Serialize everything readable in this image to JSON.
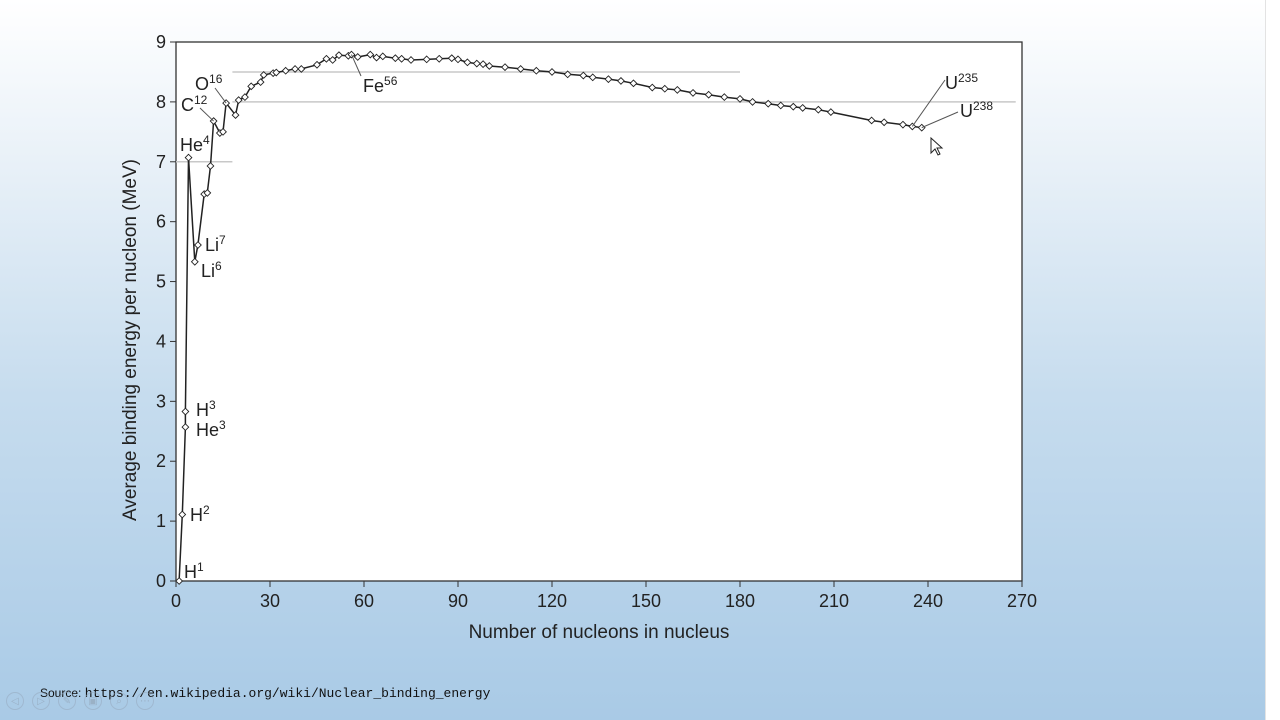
{
  "chart_data": {
    "type": "line",
    "title": "",
    "xlabel": "Number of nucleons in nucleus",
    "ylabel": "Average binding energy per nucleon (MeV)",
    "xlim": [
      0,
      270
    ],
    "ylim": [
      0,
      9
    ],
    "xticks": [
      "0",
      "30",
      "60",
      "90",
      "120",
      "150",
      "180",
      "210",
      "240",
      "270"
    ],
    "yticks": [
      "0",
      "1",
      "2",
      "3",
      "4",
      "5",
      "6",
      "7",
      "8",
      "9"
    ],
    "grid": false,
    "legend": "none",
    "points": [
      [
        1,
        0
      ],
      [
        2,
        1.11
      ],
      [
        3,
        2.57
      ],
      [
        3,
        2.83
      ],
      [
        4,
        7.07
      ],
      [
        6,
        5.33
      ],
      [
        7,
        5.61
      ],
      [
        9,
        6.46
      ],
      [
        10,
        6.48
      ],
      [
        11,
        6.93
      ],
      [
        12,
        7.68
      ],
      [
        14,
        7.48
      ],
      [
        15,
        7.5
      ],
      [
        16,
        7.98
      ],
      [
        19,
        7.78
      ],
      [
        20,
        8.03
      ],
      [
        22,
        8.08
      ],
      [
        24,
        8.26
      ],
      [
        27,
        8.33
      ],
      [
        28,
        8.45
      ],
      [
        31,
        8.48
      ],
      [
        32,
        8.49
      ],
      [
        35,
        8.52
      ],
      [
        38,
        8.55
      ],
      [
        40,
        8.55
      ],
      [
        45,
        8.62
      ],
      [
        48,
        8.72
      ],
      [
        50,
        8.7
      ],
      [
        52,
        8.78
      ],
      [
        55,
        8.77
      ],
      [
        56,
        8.79
      ],
      [
        58,
        8.75
      ],
      [
        62,
        8.79
      ],
      [
        64,
        8.74
      ],
      [
        66,
        8.76
      ],
      [
        70,
        8.73
      ],
      [
        72,
        8.72
      ],
      [
        75,
        8.7
      ],
      [
        80,
        8.71
      ],
      [
        84,
        8.72
      ],
      [
        88,
        8.73
      ],
      [
        90,
        8.71
      ],
      [
        93,
        8.66
      ],
      [
        96,
        8.64
      ],
      [
        98,
        8.63
      ],
      [
        100,
        8.6
      ],
      [
        105,
        8.58
      ],
      [
        110,
        8.55
      ],
      [
        115,
        8.52
      ],
      [
        120,
        8.5
      ],
      [
        125,
        8.46
      ],
      [
        130,
        8.44
      ],
      [
        133,
        8.41
      ],
      [
        138,
        8.38
      ],
      [
        142,
        8.35
      ],
      [
        146,
        8.31
      ],
      [
        152,
        8.24
      ],
      [
        156,
        8.22
      ],
      [
        160,
        8.2
      ],
      [
        165,
        8.15
      ],
      [
        170,
        8.12
      ],
      [
        175,
        8.08
      ],
      [
        180,
        8.05
      ],
      [
        184,
        8.0
      ],
      [
        189,
        7.97
      ],
      [
        193,
        7.94
      ],
      [
        197,
        7.92
      ],
      [
        200,
        7.9
      ],
      [
        205,
        7.87
      ],
      [
        209,
        7.83
      ],
      [
        222,
        7.69
      ],
      [
        226,
        7.66
      ],
      [
        232,
        7.62
      ],
      [
        235,
        7.59
      ],
      [
        238,
        7.57
      ]
    ],
    "annotations": [
      {
        "base": "H",
        "sup": "1",
        "x": 1,
        "y": 0
      },
      {
        "base": "H",
        "sup": "2",
        "x": 2,
        "y": 1.11
      },
      {
        "base": "He",
        "sup": "3",
        "x": 3,
        "y": 2.57
      },
      {
        "base": "H",
        "sup": "3",
        "x": 3,
        "y": 2.83
      },
      {
        "base": "He",
        "sup": "4",
        "x": 4,
        "y": 7.07
      },
      {
        "base": "Li",
        "sup": "6",
        "x": 6,
        "y": 5.33
      },
      {
        "base": "Li",
        "sup": "7",
        "x": 7,
        "y": 5.61
      },
      {
        "base": "C",
        "sup": "12",
        "x": 12,
        "y": 7.68
      },
      {
        "base": "O",
        "sup": "16",
        "x": 16,
        "y": 7.98
      },
      {
        "base": "Fe",
        "sup": "56",
        "x": 56,
        "y": 8.79
      },
      {
        "base": "U",
        "sup": "235",
        "x": 235,
        "y": 7.59
      },
      {
        "base": "U",
        "sup": "238",
        "x": 238,
        "y": 7.57
      }
    ],
    "reference_lines": [
      {
        "y": 7.0,
        "x_from": 0,
        "x_to": 18
      },
      {
        "y": 8.0,
        "x_from": 18,
        "x_to": 268
      },
      {
        "y": 8.5,
        "x_from": 18,
        "x_to": 180
      }
    ]
  },
  "source": {
    "label": "Source:",
    "url": "https://en.wikipedia.org/wiki/Nuclear_binding_energy"
  },
  "controls": [
    {
      "name": "previous-icon",
      "glyph": "◁"
    },
    {
      "name": "next-icon",
      "glyph": "▷"
    },
    {
      "name": "pen-icon",
      "glyph": "✎"
    },
    {
      "name": "slides-icon",
      "glyph": "▣"
    },
    {
      "name": "zoom-icon",
      "glyph": "⌕"
    },
    {
      "name": "more-icon",
      "glyph": "⋯"
    }
  ],
  "colors": {
    "line": "#222222",
    "marker_fill": "#ffffff",
    "axis": "#333333",
    "reference": "#c8c8c8",
    "plot_bg": "#ffffff"
  }
}
